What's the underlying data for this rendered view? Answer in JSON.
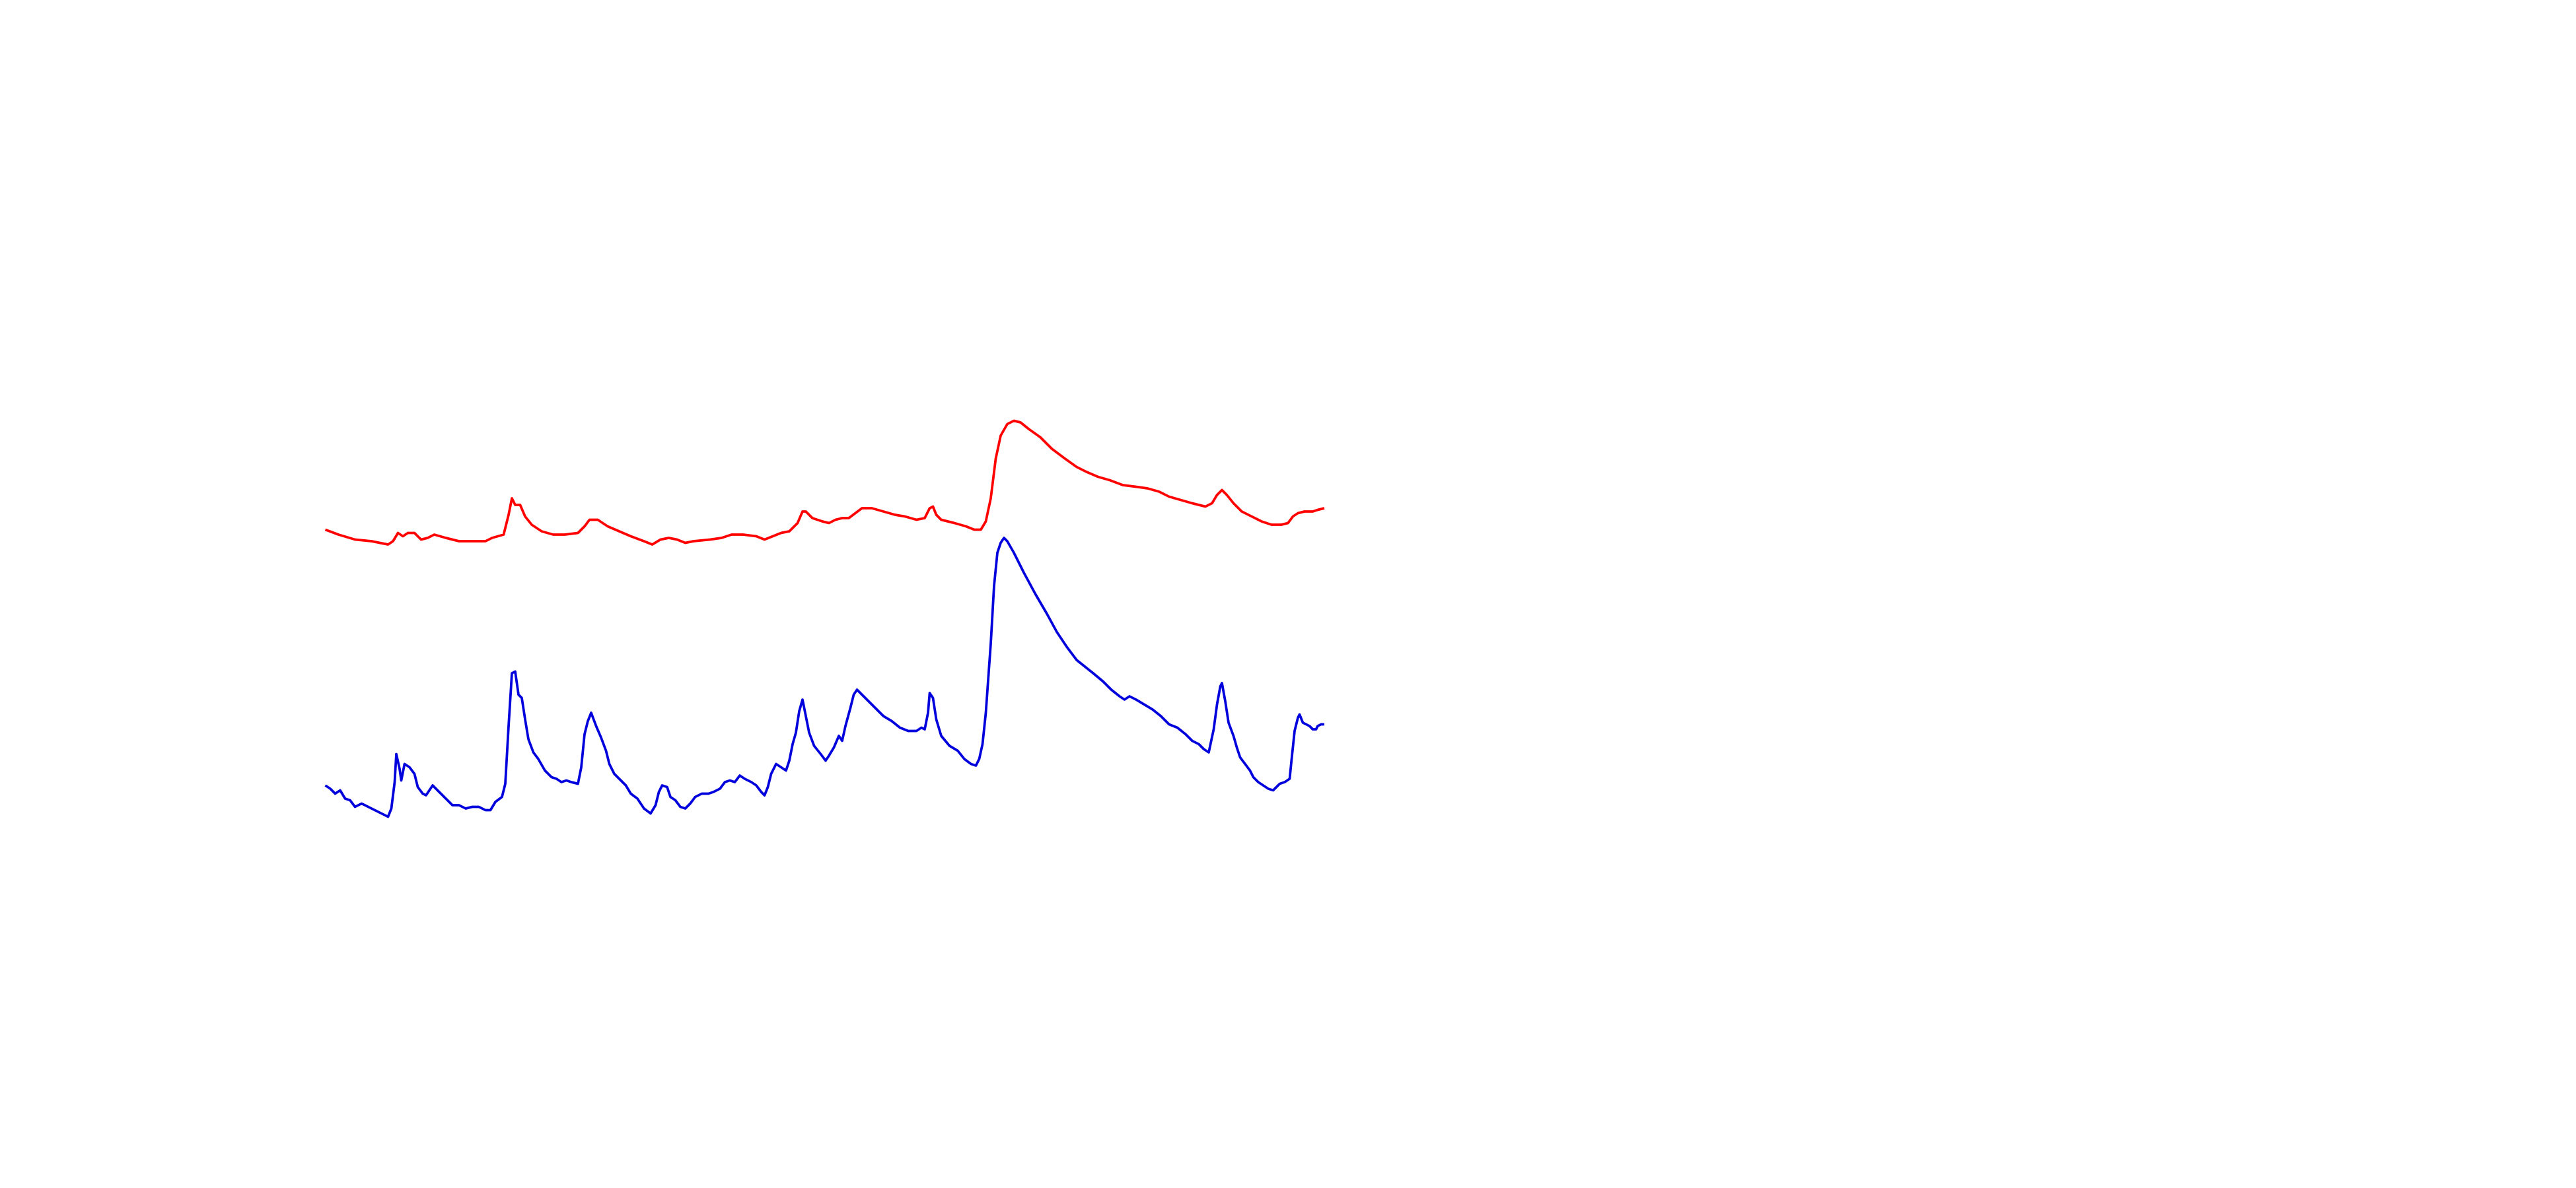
{
  "chart_data": {
    "type": "line",
    "xlim": [
      0,
      1560
    ],
    "ylim": [
      0,
      720
    ],
    "series": [
      {
        "color": "#ff0000",
        "x": [
          197,
          205,
          215,
          225,
          235,
          238,
          241,
          244,
          247,
          251,
          255,
          259,
          263,
          270,
          278,
          286,
          294,
          298,
          305,
          308,
          310,
          312,
          315,
          318,
          322,
          328,
          335,
          342,
          350,
          354,
          357,
          362,
          368,
          375,
          382,
          390,
          395,
          400,
          405,
          410,
          415,
          420,
          430,
          437,
          443,
          450,
          458,
          463,
          468,
          473,
          478,
          483,
          486,
          488,
          492,
          498,
          502,
          506,
          510,
          514,
          518,
          522,
          528,
          535,
          542,
          548,
          555,
          560,
          563,
          565,
          567,
          570,
          578,
          585,
          590,
          594,
          597,
          600,
          603,
          606,
          610,
          614,
          618,
          623,
          630,
          637,
          645,
          652,
          658,
          665,
          672,
          680,
          688,
          695,
          702,
          708,
          715,
          722,
          730,
          734,
          737,
          740,
          743,
          747,
          752,
          758,
          764,
          770,
          776,
          780,
          783,
          786,
          790,
          795,
          798,
          802
        ],
        "values": [
          399,
          396,
          393,
          392,
          390,
          392,
          397,
          395,
          397,
          397,
          393,
          394,
          396,
          394,
          392,
          392,
          392,
          394,
          396,
          408,
          418,
          414,
          414,
          407,
          402,
          398,
          396,
          396,
          397,
          401,
          405,
          405,
          401,
          398,
          395,
          392,
          390,
          393,
          394,
          393,
          391,
          392,
          393,
          394,
          396,
          396,
          395,
          393,
          395,
          397,
          398,
          403,
          410,
          410,
          406,
          404,
          403,
          405,
          406,
          406,
          409,
          412,
          412,
          410,
          408,
          407,
          405,
          406,
          412,
          413,
          408,
          405,
          403,
          401,
          399,
          399,
          404,
          418,
          442,
          456,
          463,
          465,
          464,
          460,
          455,
          448,
          442,
          437,
          434,
          431,
          429,
          426,
          425,
          424,
          422,
          419,
          417,
          415,
          413,
          415,
          420,
          423,
          420,
          415,
          410,
          407,
          404,
          402,
          402,
          403,
          407,
          409,
          410,
          410,
          411,
          412
        ]
      },
      {
        "color": "#0000dd",
        "x": [
          197,
          200,
          203,
          206,
          209,
          212,
          215,
          219,
          223,
          227,
          231,
          235,
          237,
          239,
          240,
          242,
          243,
          245,
          248,
          251,
          253,
          256,
          258,
          260,
          262,
          265,
          268,
          271,
          274,
          278,
          282,
          286,
          290,
          294,
          297,
          300,
          304,
          306,
          308,
          310,
          312,
          314,
          316,
          318,
          320,
          323,
          326,
          330,
          334,
          337,
          340,
          343,
          346,
          350,
          352,
          354,
          356,
          358,
          361,
          364,
          367,
          369,
          372,
          376,
          379,
          382,
          386,
          390,
          394,
          397,
          399,
          401,
          404,
          406,
          409,
          412,
          415,
          418,
          421,
          425,
          429,
          432,
          436,
          439,
          442,
          445,
          448,
          451,
          455,
          458,
          461,
          463,
          465,
          467,
          470,
          473,
          476,
          478,
          480,
          482,
          484,
          486,
          488,
          490,
          493,
          497,
          500,
          502,
          505,
          508,
          510,
          512,
          515,
          517,
          519,
          522,
          526,
          530,
          535,
          540,
          545,
          550,
          555,
          558,
          560,
          562,
          563,
          565,
          567,
          570,
          575,
          580,
          584,
          588,
          591,
          593,
          595,
          597,
          600,
          602,
          604,
          606,
          608,
          610,
          614,
          620,
          627,
          634,
          640,
          646,
          652,
          657,
          662,
          668,
          673,
          678,
          681,
          684,
          688,
          693,
          698,
          703,
          708,
          713,
          718,
          722,
          726,
          729,
          732,
          735,
          737,
          739,
          740,
          742,
          744,
          747,
          749,
          751,
          754,
          757,
          759,
          762,
          765,
          768,
          771,
          773,
          775,
          778,
          781,
          782,
          784,
          786,
          787,
          789,
          793,
          795,
          797,
          798,
          800,
          802
        ],
        "values": [
          244,
          242,
          239,
          241,
          236,
          235,
          231,
          233,
          231,
          229,
          227,
          225,
          230,
          246,
          263,
          254,
          247,
          257,
          255,
          251,
          243,
          239,
          238,
          241,
          244,
          241,
          238,
          235,
          232,
          232,
          230,
          231,
          231,
          229,
          229,
          234,
          237,
          245,
          280,
          312,
          313,
          299,
          297,
          284,
          272,
          264,
          260,
          253,
          249,
          248,
          246,
          247,
          246,
          245,
          255,
          275,
          283,
          288,
          280,
          273,
          265,
          257,
          251,
          247,
          244,
          239,
          236,
          230,
          227,
          232,
          240,
          244,
          243,
          237,
          235,
          231,
          230,
          233,
          237,
          239,
          239,
          240,
          242,
          246,
          247,
          246,
          250,
          248,
          246,
          244,
          240,
          238,
          243,
          251,
          257,
          255,
          253,
          259,
          269,
          276,
          289,
          296,
          286,
          276,
          268,
          263,
          259,
          262,
          267,
          274,
          271,
          280,
          291,
          299,
          302,
          299,
          295,
          291,
          286,
          283,
          279,
          277,
          277,
          279,
          278,
          288,
          300,
          297,
          284,
          274,
          268,
          265,
          260,
          257,
          256,
          260,
          269,
          288,
          330,
          365,
          385,
          391,
          394,
          392,
          385,
          373,
          360,
          348,
          337,
          328,
          320,
          316,
          312,
          307,
          302,
          298,
          296,
          298,
          296,
          293,
          290,
          286,
          281,
          279,
          275,
          271,
          269,
          266,
          264,
          278,
          293,
          304,
          306,
          295,
          282,
          274,
          267,
          261,
          257,
          253,
          249,
          246,
          244,
          242,
          241,
          243,
          245,
          246,
          248,
          258,
          277,
          285,
          287,
          282,
          280,
          278,
          278,
          280,
          281,
          281
        ]
      }
    ]
  }
}
